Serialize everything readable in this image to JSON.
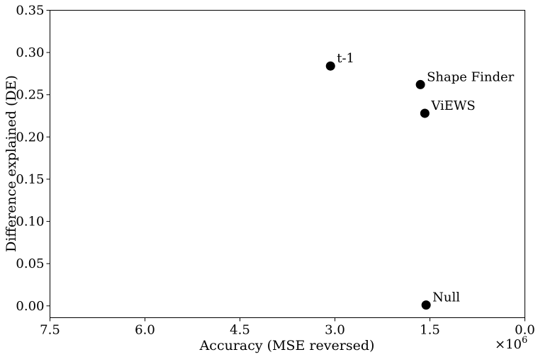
{
  "chart_data": {
    "type": "scatter",
    "title": "",
    "xlabel": "Accuracy (MSE reversed)",
    "ylabel": "Difference explained (DE)",
    "x_multiplier_label": "×10",
    "x_multiplier_exponent": "6",
    "x_reversed": true,
    "xlim": [
      7.5,
      0.0
    ],
    "ylim": [
      -0.014,
      0.35
    ],
    "x_ticks": [
      7.5,
      6.0,
      4.5,
      3.0,
      1.5,
      0.0
    ],
    "x_tick_labels": [
      "7.5",
      "6.0",
      "4.5",
      "3.0",
      "1.5",
      "0.0"
    ],
    "y_ticks": [
      0.0,
      0.05,
      0.1,
      0.15,
      0.2,
      0.25,
      0.3,
      0.35
    ],
    "y_tick_labels": [
      "0.00",
      "0.05",
      "0.10",
      "0.15",
      "0.20",
      "0.25",
      "0.30",
      "0.35"
    ],
    "grid": false,
    "marker_color": "#000000",
    "points": [
      {
        "label": "t-1",
        "x": 3.07,
        "y": 0.284
      },
      {
        "label": "Shape Finder",
        "x": 1.65,
        "y": 0.262
      },
      {
        "label": "ViEWS",
        "x": 1.58,
        "y": 0.228
      },
      {
        "label": "Null",
        "x": 1.56,
        "y": 0.001
      }
    ]
  }
}
